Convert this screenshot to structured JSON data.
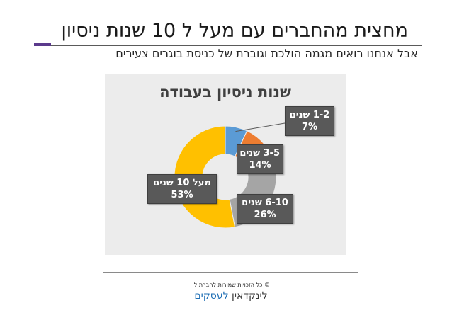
{
  "slide": {
    "title": "מחצית מהחברים עם מעל ל 10 שנות ניסיון",
    "subtitle": "אבל אנחנו רואים מגמה הולכת וגוברת של כניסת בוגרים צעירים",
    "copyright": "© כל הזכויות שמורות לחברת ל:",
    "brand_part1": "לינקדאין",
    "brand_part2": "לעסקים",
    "accent_color": "#5b3a8c"
  },
  "chart_data": {
    "type": "pie",
    "variant": "donut",
    "title": "שנות ניסיון בעבודה",
    "categories": [
      "1-2 שנים",
      "3-5 שנים",
      "6-10 שנים",
      "מעל 10 שנים"
    ],
    "values": [
      7,
      14,
      26,
      53
    ],
    "labels": [
      "7%",
      "14%",
      "26%",
      "53%"
    ],
    "colors": [
      "#5b9bd5",
      "#ed7d31",
      "#a5a5a5",
      "#ffc000"
    ]
  }
}
